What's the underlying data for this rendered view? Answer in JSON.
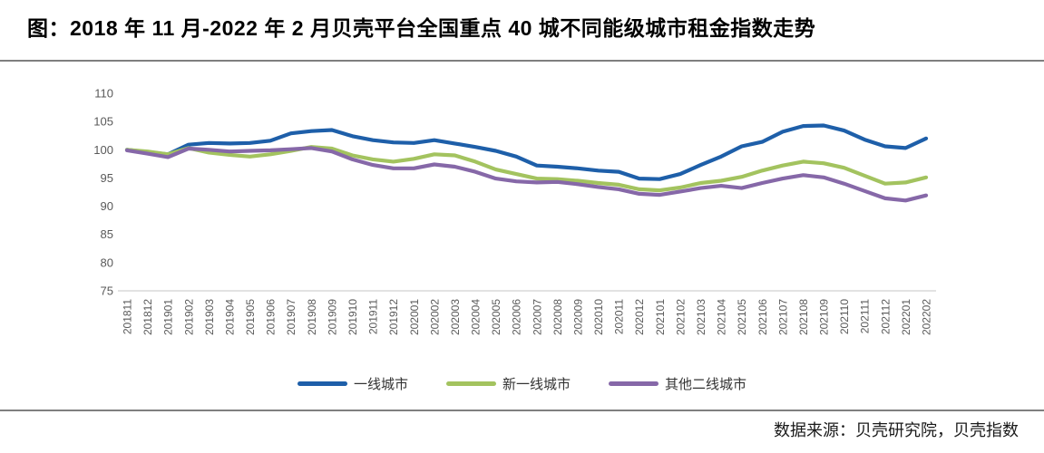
{
  "title": "图：2018 年 11 月-2022 年 2 月贝壳平台全国重点 40 城不同能级城市租金指数走势",
  "source_note": "数据来源：贝壳研究院，贝壳指数",
  "colors": {
    "tier1_blue": "#1E5FA9",
    "new_tier1_green": "#A3C35F",
    "tier2_purple": "#8668A8",
    "divider_gray": "#7F7F7F",
    "axis_line": "#D9D9D9",
    "tick_text": "#595959"
  },
  "chart_data": {
    "type": "line",
    "title": "",
    "xlabel": "",
    "ylabel": "",
    "ylim": [
      75,
      110
    ],
    "yticks": [
      75,
      80,
      85,
      90,
      95,
      100,
      105,
      110
    ],
    "grid": false,
    "legend_position": "bottom",
    "x": [
      "201811",
      "201812",
      "201901",
      "201902",
      "201903",
      "201904",
      "201905",
      "201906",
      "201907",
      "201908",
      "201909",
      "201910",
      "201911",
      "201912",
      "202001",
      "202002",
      "202003",
      "202004",
      "202005",
      "202006",
      "202007",
      "202008",
      "202009",
      "202010",
      "202011",
      "202012",
      "202101",
      "202102",
      "202103",
      "202104",
      "202105",
      "202106",
      "202107",
      "202108",
      "202109",
      "202110",
      "202111",
      "202112",
      "202201",
      "202202"
    ],
    "series": [
      {
        "name": "一线城市",
        "color": "#1E5FA9",
        "values": [
          100.0,
          99.6,
          99.2,
          100.9,
          101.2,
          101.1,
          101.2,
          101.6,
          102.9,
          103.3,
          103.5,
          102.4,
          101.7,
          101.3,
          101.2,
          101.7,
          101.1,
          100.5,
          99.8,
          98.8,
          97.2,
          97.0,
          96.7,
          96.3,
          96.1,
          94.9,
          94.8,
          95.7,
          97.3,
          98.8,
          100.6,
          101.4,
          103.2,
          104.2,
          104.3,
          103.4,
          101.8,
          100.6,
          100.3,
          102.0
        ]
      },
      {
        "name": "新一线城市",
        "color": "#A3C35F",
        "values": [
          100.0,
          99.7,
          99.2,
          100.3,
          99.5,
          99.1,
          98.8,
          99.2,
          99.8,
          100.5,
          100.2,
          99.0,
          98.3,
          97.9,
          98.4,
          99.2,
          99.0,
          97.9,
          96.5,
          95.7,
          94.9,
          94.8,
          94.5,
          94.1,
          93.8,
          93.0,
          92.8,
          93.3,
          94.1,
          94.5,
          95.2,
          96.3,
          97.2,
          97.9,
          97.6,
          96.8,
          95.4,
          94.0,
          94.2,
          95.1
        ]
      },
      {
        "name": "其他二线城市",
        "color": "#8668A8",
        "values": [
          99.9,
          99.3,
          98.7,
          100.2,
          100.0,
          99.7,
          99.8,
          99.9,
          100.1,
          100.3,
          99.7,
          98.3,
          97.3,
          96.7,
          96.7,
          97.4,
          97.0,
          96.1,
          94.9,
          94.4,
          94.2,
          94.3,
          93.9,
          93.4,
          93.0,
          92.2,
          92.0,
          92.6,
          93.2,
          93.6,
          93.2,
          94.1,
          94.9,
          95.5,
          95.1,
          94.0,
          92.7,
          91.4,
          91.0,
          91.9
        ]
      }
    ]
  }
}
